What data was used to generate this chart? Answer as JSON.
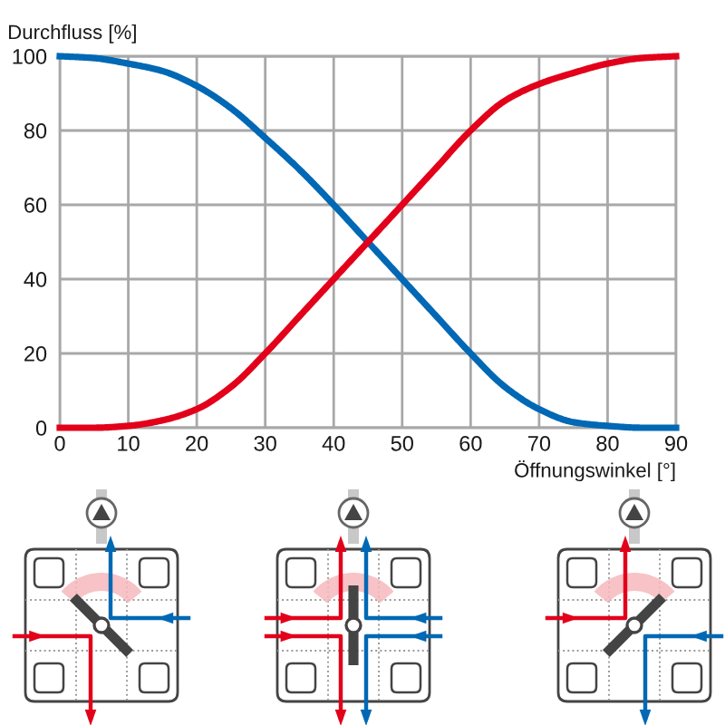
{
  "chart_data": {
    "type": "line",
    "xlabel": "Öffnungswinkel [°]",
    "ylabel": "Durchfluss [%]",
    "x": [
      0,
      5,
      10,
      15,
      20,
      25,
      30,
      35,
      40,
      45,
      50,
      55,
      60,
      65,
      70,
      75,
      80,
      85,
      90
    ],
    "series": [
      {
        "color": "#0068b4",
        "values": [
          100,
          99.5,
          98,
          96,
          92,
          86,
          78,
          69.5,
          60,
          50,
          40,
          30,
          20,
          11,
          5,
          1.5,
          0.5,
          0,
          0
        ]
      },
      {
        "color": "#e2001a",
        "values": [
          0,
          0,
          0.5,
          2,
          5,
          11,
          20,
          30,
          40,
          50,
          60,
          70,
          80,
          88,
          92.5,
          95.5,
          98,
          99.5,
          100
        ]
      }
    ],
    "xlim": [
      0,
      90
    ],
    "ylim": [
      0,
      100
    ],
    "xticks": [
      0,
      10,
      20,
      30,
      40,
      50,
      60,
      70,
      80,
      90
    ],
    "yticks": [
      0,
      20,
      40,
      60,
      80,
      100
    ],
    "grid": true,
    "line_style": "solid"
  }
}
